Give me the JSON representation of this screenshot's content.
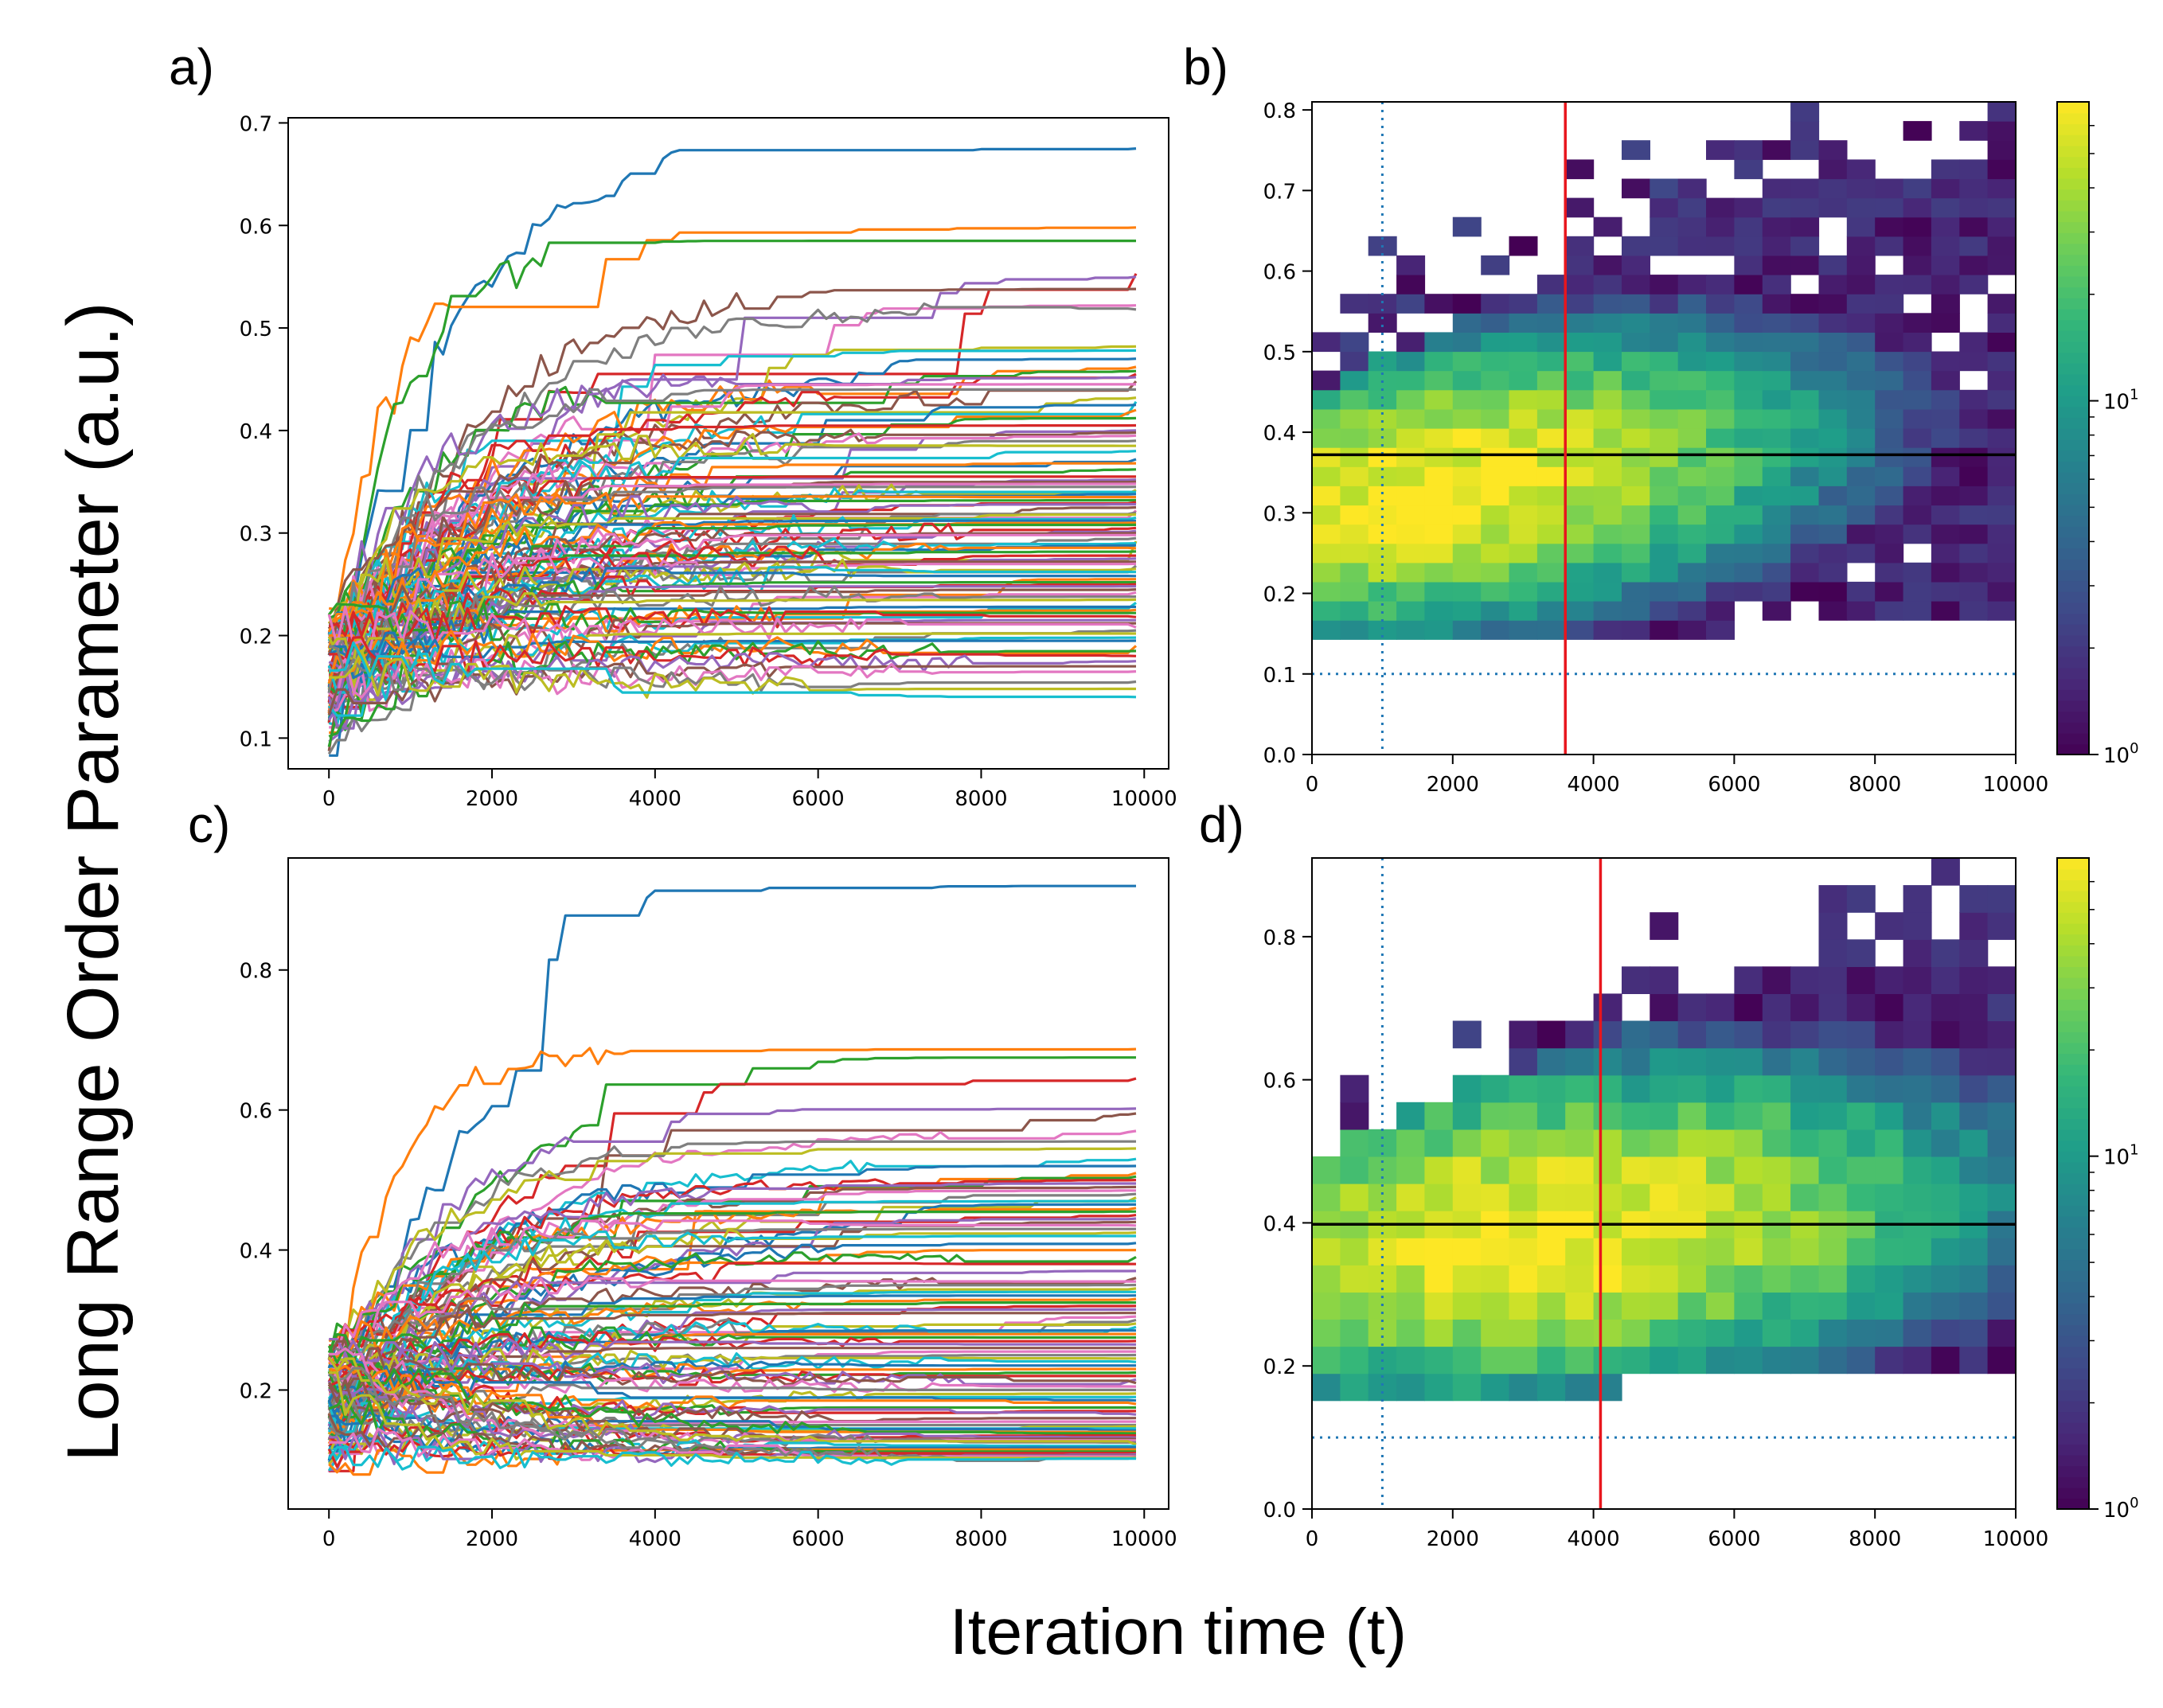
{
  "figure": {
    "ylabel": "Long Range Order Parameter (a.u.)",
    "xlabel": "Iteration time (t)"
  },
  "chart_data": [
    {
      "panel_label": "a)",
      "type": "line",
      "series_count": 100,
      "x_range": [
        0,
        9900
      ],
      "xlim": [
        -500,
        10300
      ],
      "ylim": [
        0.07,
        0.705
      ],
      "xticks": [
        0,
        2000,
        4000,
        6000,
        8000,
        10000
      ],
      "xtick_labels": [
        "0",
        "2000",
        "4000",
        "6000",
        "8000",
        "10000"
      ],
      "yticks": [
        0.1,
        0.2,
        0.3,
        0.4,
        0.5,
        0.6,
        0.7
      ],
      "ytick_labels": [
        "0.1",
        "0.2",
        "0.3",
        "0.4",
        "0.5",
        "0.6",
        "0.7"
      ],
      "start_range": [
        0.1,
        0.21
      ],
      "final_values": [
        0.675,
        0.598,
        0.585,
        0.553,
        0.55,
        0.538,
        0.522,
        0.518,
        0.482,
        0.478,
        0.47,
        0.462,
        0.458,
        0.455,
        0.452,
        0.448,
        0.445,
        0.44,
        0.432,
        0.428,
        0.425,
        0.42,
        0.412,
        0.405,
        0.4,
        0.398,
        0.395,
        0.39,
        0.385,
        0.38,
        0.372,
        0.368,
        0.362,
        0.355,
        0.352,
        0.35,
        0.348,
        0.345,
        0.342,
        0.34,
        0.338,
        0.335,
        0.332,
        0.33,
        0.328,
        0.325,
        0.322,
        0.32,
        0.318,
        0.315,
        0.312,
        0.31,
        0.308,
        0.305,
        0.302,
        0.3,
        0.298,
        0.295,
        0.292,
        0.29,
        0.288,
        0.285,
        0.282,
        0.278,
        0.275,
        0.272,
        0.27,
        0.268,
        0.265,
        0.262,
        0.258,
        0.255,
        0.252,
        0.25,
        0.248,
        0.245,
        0.242,
        0.238,
        0.235,
        0.232,
        0.228,
        0.225,
        0.222,
        0.218,
        0.215,
        0.212,
        0.208,
        0.205,
        0.202,
        0.198,
        0.195,
        0.19,
        0.185,
        0.18,
        0.175,
        0.17,
        0.165,
        0.155,
        0.148,
        0.14
      ]
    },
    {
      "panel_label": "b)",
      "type": "heatmap",
      "bins_x": 25,
      "bins_y": 34,
      "xlim": [
        0,
        10000
      ],
      "ylim": [
        0,
        0.81
      ],
      "xticks": [
        0,
        2000,
        4000,
        6000,
        8000,
        10000
      ],
      "xtick_labels": [
        "0",
        "2000",
        "4000",
        "6000",
        "8000",
        "10000"
      ],
      "yticks": [
        0.0,
        0.1,
        0.2,
        0.3,
        0.4,
        0.5,
        0.6,
        0.7,
        0.8
      ],
      "ytick_labels": [
        "0.0",
        "0.1",
        "0.2",
        "0.3",
        "0.4",
        "0.5",
        "0.6",
        "0.7",
        "0.8"
      ],
      "colorscale": "viridis",
      "color_norm": "log",
      "color_range": [
        1,
        70
      ],
      "colorbar_tick_labels": [
        "10^1",
        "10^0"
      ],
      "mean_line_y": 0.372,
      "median_line_x": 3600,
      "threshold_x": 1000,
      "threshold_y": 0.1,
      "peak_center": [
        1800,
        0.31
      ],
      "peak_spread": [
        2700,
        0.085
      ],
      "drift_per_1000": 0.012,
      "lower_bound": [
        0.14,
        0.025
      ],
      "upper_bound": [
        0.45,
        0.04,
        0.75
      ],
      "colors": {
        "mean_line": "#000000",
        "median_line": "#e8161d",
        "threshold": "#1f77b4"
      }
    },
    {
      "panel_label": "c)",
      "type": "line",
      "series_count": 100,
      "x_range": [
        0,
        9900
      ],
      "xlim": [
        -500,
        10300
      ],
      "ylim": [
        0.03,
        0.96
      ],
      "xticks": [
        0,
        2000,
        4000,
        6000,
        8000,
        10000
      ],
      "xtick_labels": [
        "0",
        "2000",
        "4000",
        "6000",
        "8000",
        "10000"
      ],
      "yticks": [
        0.2,
        0.4,
        0.6,
        0.8
      ],
      "ytick_labels": [
        "0.2",
        "0.4",
        "0.6",
        "0.8"
      ],
      "start_range": [
        0.08,
        0.27
      ],
      "final_values": [
        0.92,
        0.687,
        0.675,
        0.645,
        0.602,
        0.595,
        0.57,
        0.555,
        0.545,
        0.53,
        0.52,
        0.51,
        0.505,
        0.5,
        0.495,
        0.49,
        0.485,
        0.48,
        0.475,
        0.47,
        0.465,
        0.46,
        0.455,
        0.45,
        0.445,
        0.44,
        0.435,
        0.43,
        0.425,
        0.42,
        0.41,
        0.4,
        0.39,
        0.38,
        0.37,
        0.36,
        0.355,
        0.35,
        0.345,
        0.34,
        0.335,
        0.33,
        0.325,
        0.32,
        0.315,
        0.31,
        0.305,
        0.3,
        0.295,
        0.29,
        0.285,
        0.28,
        0.275,
        0.27,
        0.265,
        0.26,
        0.255,
        0.25,
        0.245,
        0.24,
        0.235,
        0.23,
        0.225,
        0.22,
        0.215,
        0.21,
        0.205,
        0.2,
        0.195,
        0.19,
        0.185,
        0.18,
        0.175,
        0.17,
        0.165,
        0.16,
        0.155,
        0.15,
        0.148,
        0.145,
        0.142,
        0.14,
        0.138,
        0.135,
        0.132,
        0.13,
        0.128,
        0.125,
        0.122,
        0.12,
        0.118,
        0.115,
        0.112,
        0.11,
        0.108,
        0.106,
        0.105,
        0.104,
        0.103,
        0.102
      ]
    },
    {
      "panel_label": "d)",
      "type": "heatmap",
      "bins_x": 25,
      "bins_y": 24,
      "xlim": [
        0,
        10000
      ],
      "ylim": [
        0,
        0.91
      ],
      "xticks": [
        0,
        2000,
        4000,
        6000,
        8000,
        10000
      ],
      "xtick_labels": [
        "0",
        "2000",
        "4000",
        "6000",
        "8000",
        "10000"
      ],
      "yticks": [
        0.0,
        0.2,
        0.4,
        0.6,
        0.8
      ],
      "ytick_labels": [
        "0.0",
        "0.2",
        "0.4",
        "0.6",
        "0.8"
      ],
      "colorscale": "viridis",
      "color_norm": "log",
      "color_range": [
        1,
        70
      ],
      "colorbar_tick_labels": [
        "10^1",
        "10^0"
      ],
      "mean_line_y": 0.398,
      "median_line_x": 4100,
      "threshold_x": 1000,
      "threshold_y": 0.1,
      "peak_center": [
        3300,
        0.36
      ],
      "peak_spread": [
        3000,
        0.11
      ],
      "drift_per_1000": 0.008,
      "lower_bound": [
        0.16,
        0.025
      ],
      "upper_bound": [
        0.5,
        0.04,
        0.86
      ],
      "colors": {
        "mean_line": "#000000",
        "median_line": "#e8161d",
        "threshold": "#1f77b4"
      }
    }
  ]
}
